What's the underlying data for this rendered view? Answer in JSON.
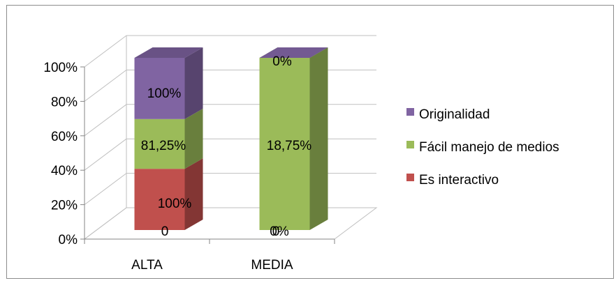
{
  "chart_data": {
    "type": "bar",
    "stacked": "percent",
    "three_d": true,
    "categories": [
      "ALTA",
      "MEDIA"
    ],
    "y_tick_labels": [
      "0%",
      "20%",
      "40%",
      "60%",
      "80%",
      "100%"
    ],
    "ylim": [
      0,
      100
    ],
    "grid": true,
    "legend_position": "right",
    "series": [
      {
        "name": "Es interactivo",
        "color": "#c0504d",
        "values": [
          100,
          0
        ],
        "data_labels": [
          "100%",
          "0%"
        ]
      },
      {
        "name": "Fácil manejo de medios",
        "color": "#9bbb59",
        "values": [
          81.25,
          18.75
        ],
        "data_labels": [
          "81,25%",
          "18,75%"
        ]
      },
      {
        "name": "Originalidad",
        "color": "#8064a2",
        "values": [
          100,
          0
        ],
        "data_labels": [
          "100%",
          "0%"
        ]
      }
    ],
    "extra_labels": [
      "0",
      "0"
    ]
  }
}
